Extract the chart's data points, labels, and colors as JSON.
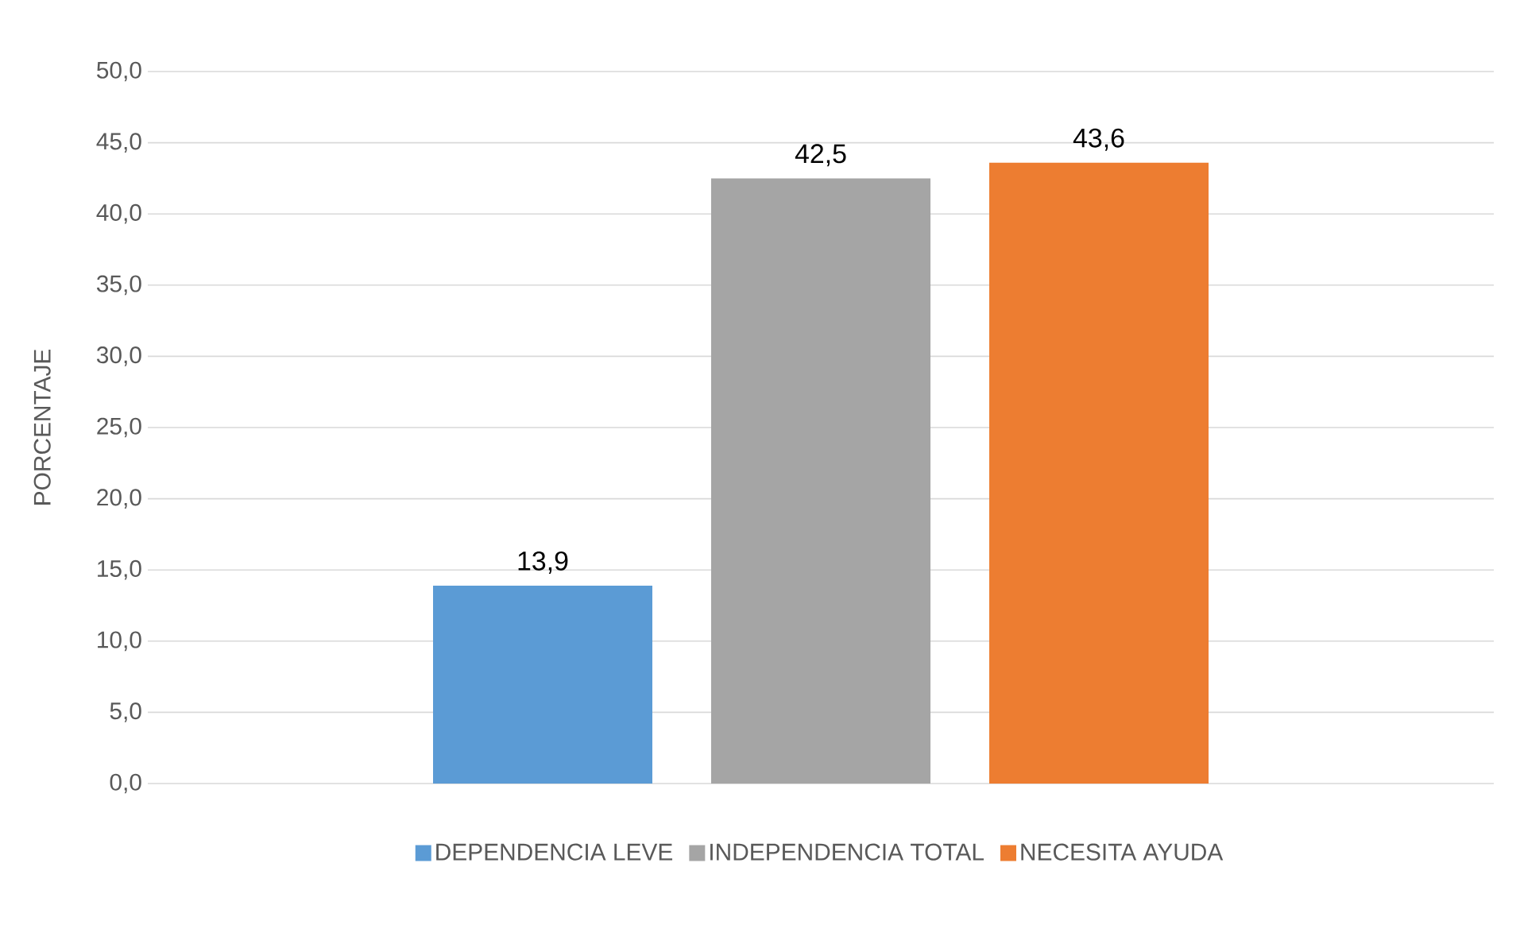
{
  "chart_data": {
    "type": "bar",
    "ylabel": "PORCENTAJE",
    "categories": [
      null
    ],
    "series": [
      {
        "name": "DEPENDENCIA LEVE",
        "color": "#5b9bd5",
        "values": [
          13.9
        ],
        "value_labels": [
          "13,9"
        ]
      },
      {
        "name": "INDEPENDENCIA TOTAL",
        "color": "#a5a5a5",
        "values": [
          42.5
        ],
        "value_labels": [
          "42,5"
        ]
      },
      {
        "name": "NECESITA AYUDA",
        "color": "#ed7d31",
        "values": [
          43.6
        ],
        "value_labels": [
          "43,6"
        ]
      }
    ],
    "ylim": [
      0,
      50
    ],
    "yticks": [
      {
        "value": 0,
        "label": "0,0"
      },
      {
        "value": 5,
        "label": "5,0"
      },
      {
        "value": 10,
        "label": "10,0"
      },
      {
        "value": 15,
        "label": "15,0"
      },
      {
        "value": 20,
        "label": "20,0"
      },
      {
        "value": 25,
        "label": "25,0"
      },
      {
        "value": 30,
        "label": "30,0"
      },
      {
        "value": 35,
        "label": "35,0"
      },
      {
        "value": 40,
        "label": "40,0"
      },
      {
        "value": 45,
        "label": "45,0"
      },
      {
        "value": 50,
        "label": "50,0"
      }
    ],
    "grid": "y",
    "legend": "bottom",
    "tick_labels": "y"
  }
}
